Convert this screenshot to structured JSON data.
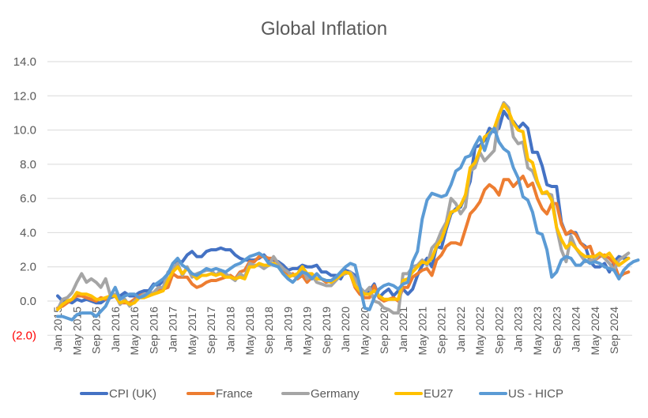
{
  "chart_data": {
    "type": "line",
    "title": "Global Inflation",
    "xlabel": "",
    "ylabel": "",
    "ylim": [
      -2,
      14
    ],
    "yticks": [
      14,
      12,
      10,
      8,
      6,
      4,
      2,
      0,
      -2
    ],
    "ytick_labels": [
      "14.0",
      "12.0",
      "10.0",
      "8.0",
      "6.0",
      "4.0",
      "2.0",
      "0.0",
      "(2.0)"
    ],
    "negative_tick_color": "#ff0000",
    "grid": true,
    "legend_position": "bottom",
    "x_start": "Jan 2015",
    "x_months": 120,
    "xtick_every_months": 4,
    "xtick_labels": [
      "Jan 2015",
      "May 2015",
      "Sep 2015",
      "Jan 2016",
      "May 2016",
      "Sep 2016",
      "Jan 2017",
      "May 2017",
      "Sep 2017",
      "Jan 2018",
      "May 2018",
      "Sep 2018",
      "Jan 2019",
      "May 2019",
      "Sep 2019",
      "Jan 2020",
      "May 2020",
      "Sep 2020",
      "Jan 2021",
      "May 2021",
      "Sep 2021",
      "Jan 2022",
      "May 2022",
      "Sep 2022",
      "Jan 2023",
      "May 2023",
      "Sep 2023",
      "Jan 2024",
      "May 2024",
      "Sep 2024"
    ],
    "series": [
      {
        "name": "CPI (UK)",
        "color": "#4472c4",
        "values": [
          0.3,
          0.0,
          0.0,
          -0.1,
          0.1,
          0.0,
          0.1,
          0.0,
          -0.1,
          -0.1,
          0.1,
          0.2,
          0.3,
          0.3,
          0.5,
          0.3,
          0.3,
          0.5,
          0.6,
          0.6,
          1.0,
          0.9,
          1.2,
          1.6,
          1.8,
          2.3,
          2.3,
          2.7,
          2.9,
          2.6,
          2.6,
          2.9,
          3.0,
          3.0,
          3.1,
          3.0,
          3.0,
          2.7,
          2.5,
          2.4,
          2.4,
          2.4,
          2.5,
          2.7,
          2.4,
          2.4,
          2.3,
          2.1,
          1.8,
          1.9,
          1.9,
          2.1,
          2.0,
          2.0,
          2.1,
          1.7,
          1.7,
          1.5,
          1.5,
          1.3,
          1.8,
          1.7,
          1.5,
          0.8,
          0.5,
          0.6,
          1.0,
          0.2,
          0.5,
          0.7,
          0.3,
          0.6,
          0.7,
          0.4,
          0.7,
          1.5,
          2.1,
          2.5,
          2.0,
          3.2,
          3.1,
          4.2,
          5.1,
          5.4,
          5.5,
          6.2,
          7.0,
          9.0,
          9.1,
          9.4,
          10.1,
          9.9,
          10.1,
          11.1,
          10.7,
          10.5,
          10.1,
          10.4,
          10.1,
          8.7,
          8.7,
          7.9,
          6.8,
          6.7,
          6.7,
          4.6,
          3.9,
          4.0,
          4.0,
          3.4,
          3.2,
          2.3,
          2.0,
          2.0,
          2.2,
          1.7,
          2.3,
          2.6,
          2.5,
          2.5
        ]
      },
      {
        "name": "France",
        "color": "#ed7d31",
        "values": [
          -0.4,
          -0.3,
          -0.1,
          0.1,
          0.3,
          0.3,
          0.2,
          0.1,
          0.0,
          0.2,
          0.1,
          0.3,
          0.3,
          -0.1,
          -0.1,
          -0.1,
          0.1,
          0.3,
          0.4,
          0.4,
          0.5,
          0.6,
          0.7,
          0.8,
          1.6,
          1.4,
          1.4,
          1.4,
          1.0,
          0.8,
          0.9,
          1.1,
          1.2,
          1.2,
          1.3,
          1.4,
          1.5,
          1.3,
          1.7,
          1.8,
          2.3,
          2.3,
          2.6,
          2.6,
          2.5,
          2.5,
          2.2,
          1.9,
          1.4,
          1.6,
          1.3,
          1.5,
          1.1,
          1.4,
          1.3,
          1.3,
          1.1,
          1.2,
          1.4,
          1.6,
          1.7,
          1.6,
          0.8,
          0.4,
          0.2,
          0.2,
          0.9,
          0.2,
          0.0,
          0.1,
          0.2,
          0.0,
          0.8,
          0.8,
          1.4,
          1.6,
          1.8,
          1.9,
          1.5,
          2.4,
          2.7,
          3.2,
          3.4,
          3.4,
          3.3,
          4.2,
          5.1,
          5.4,
          5.8,
          6.5,
          6.8,
          6.6,
          6.2,
          7.1,
          7.1,
          6.7,
          7.0,
          7.3,
          6.7,
          6.9,
          6.0,
          5.4,
          5.1,
          5.7,
          5.7,
          4.5,
          3.9,
          4.1,
          3.9,
          3.4,
          3.1,
          3.2,
          2.4,
          2.6,
          2.7,
          2.5,
          2.2,
          1.4,
          1.6,
          1.7
        ]
      },
      {
        "name": "Germany",
        "color": "#a5a5a5",
        "values": [
          -0.5,
          0.1,
          0.2,
          0.5,
          1.1,
          1.6,
          1.1,
          1.3,
          1.1,
          0.8,
          1.3,
          0.3,
          0.4,
          -0.2,
          0.1,
          -0.3,
          0.0,
          0.2,
          0.4,
          0.3,
          0.5,
          0.8,
          0.8,
          1.7,
          1.9,
          2.2,
          1.5,
          2.0,
          1.4,
          1.6,
          1.7,
          1.8,
          1.8,
          1.5,
          1.8,
          1.6,
          1.4,
          1.2,
          1.6,
          1.4,
          2.2,
          2.1,
          2.1,
          1.9,
          2.1,
          2.6,
          2.2,
          1.9,
          1.7,
          1.5,
          1.4,
          2.0,
          1.3,
          1.5,
          1.1,
          1.0,
          0.9,
          0.9,
          1.2,
          1.5,
          1.6,
          1.7,
          1.3,
          0.8,
          0.5,
          0.8,
          0.0,
          -0.1,
          -0.4,
          -0.5,
          -0.7,
          -0.7,
          1.6,
          1.6,
          2.0,
          2.1,
          2.4,
          2.1,
          3.1,
          3.4,
          4.1,
          4.6,
          6.0,
          5.7,
          5.1,
          5.5,
          7.6,
          7.8,
          8.7,
          8.2,
          8.5,
          8.8,
          10.9,
          11.6,
          11.3,
          9.6,
          9.2,
          9.3,
          7.8,
          7.6,
          6.9,
          6.3,
          6.3,
          6.2,
          4.3,
          3.0,
          2.3,
          3.8,
          3.1,
          2.7,
          2.3,
          2.4,
          2.4,
          2.8,
          2.5,
          2.2,
          1.8,
          2.4,
          2.6,
          2.8
        ]
      },
      {
        "name": "EU27",
        "color": "#ffc000",
        "values": [
          -0.5,
          -0.2,
          0.0,
          0.1,
          0.5,
          0.4,
          0.4,
          0.3,
          0.1,
          0.1,
          0.2,
          0.3,
          0.3,
          -0.1,
          0.0,
          -0.2,
          -0.1,
          0.2,
          0.2,
          0.3,
          0.4,
          0.5,
          0.6,
          1.2,
          1.7,
          2.0,
          1.6,
          1.9,
          1.6,
          1.3,
          1.5,
          1.5,
          1.6,
          1.5,
          1.6,
          1.4,
          1.4,
          1.3,
          1.4,
          1.3,
          2.0,
          2.0,
          2.2,
          2.1,
          2.1,
          2.2,
          2.0,
          1.6,
          1.4,
          1.5,
          1.6,
          2.0,
          1.6,
          1.6,
          1.3,
          1.3,
          1.2,
          1.1,
          1.3,
          1.5,
          1.7,
          1.6,
          0.9,
          0.6,
          0.4,
          0.4,
          0.6,
          0.3,
          0.1,
          0.1,
          0.1,
          0.1,
          1.2,
          1.3,
          1.7,
          2.0,
          2.3,
          2.2,
          2.5,
          3.2,
          3.6,
          4.4,
          5.2,
          5.3,
          5.6,
          6.2,
          7.8,
          8.1,
          8.8,
          9.6,
          9.8,
          10.1,
          10.9,
          11.5,
          11.1,
          10.4,
          10.0,
          9.9,
          8.3,
          8.1,
          7.0,
          6.3,
          6.4,
          5.9,
          4.3,
          3.6,
          3.1,
          3.4,
          3.1,
          2.8,
          2.6,
          2.6,
          2.6,
          2.8,
          2.6,
          2.8,
          2.4,
          2.1,
          2.3,
          2.5
        ]
      },
      {
        "name": "US - HICP",
        "color": "#5b9bd5",
        "values": [
          -0.9,
          -0.9,
          -1.0,
          -1.1,
          -0.8,
          -0.7,
          -0.7,
          -0.7,
          -0.9,
          -0.6,
          -0.3,
          0.3,
          0.8,
          0.1,
          0.3,
          0.4,
          0.4,
          0.2,
          0.3,
          0.5,
          0.9,
          1.1,
          1.3,
          1.6,
          2.2,
          2.5,
          2.1,
          1.9,
          1.6,
          1.5,
          1.7,
          1.9,
          1.8,
          1.9,
          1.8,
          1.7,
          1.9,
          2.1,
          2.2,
          2.4,
          2.6,
          2.7,
          2.8,
          2.6,
          2.2,
          2.1,
          2.0,
          1.6,
          1.3,
          1.1,
          1.4,
          1.7,
          1.6,
          1.3,
          1.6,
          1.3,
          1.2,
          1.2,
          1.4,
          1.7,
          2.0,
          2.2,
          2.1,
          0.9,
          -0.4,
          -0.5,
          0.2,
          0.7,
          0.9,
          1.0,
          0.9,
          0.7,
          1.0,
          1.1,
          2.3,
          2.9,
          4.8,
          5.9,
          6.3,
          6.2,
          6.1,
          6.2,
          6.8,
          7.6,
          7.8,
          8.4,
          8.5,
          9.1,
          9.6,
          8.8,
          9.7,
          10.1,
          9.3,
          8.9,
          8.7,
          7.8,
          7.2,
          6.1,
          5.9,
          5.2,
          4.0,
          3.9,
          3.0,
          1.4,
          1.7,
          2.4,
          2.6,
          2.5,
          2.1,
          2.1,
          2.4,
          2.2,
          2.3,
          2.2,
          2.0,
          1.9,
          1.8,
          1.3,
          1.8,
          2.1,
          2.3,
          2.4
        ]
      }
    ]
  }
}
